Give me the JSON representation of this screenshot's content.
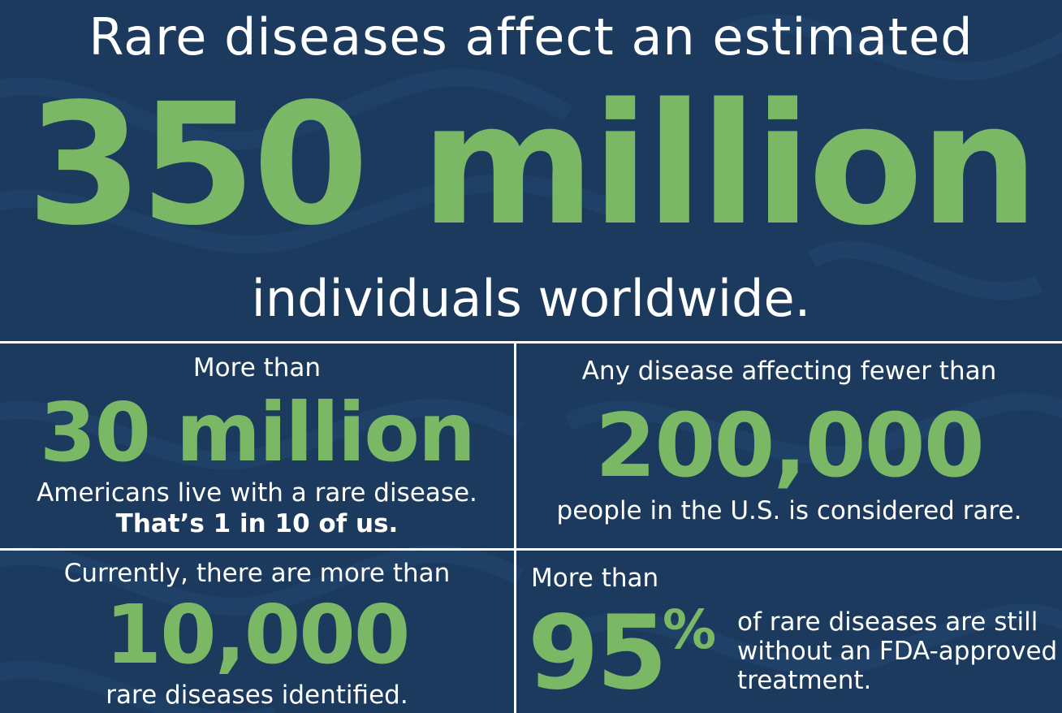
{
  "colors": {
    "background": "#1b3a5e",
    "accent": "#7ab865",
    "text": "#ffffff"
  },
  "hero": {
    "top": "Rare diseases affect an estimated",
    "number": "350 million",
    "bottom": "individuals worldwide."
  },
  "stats": [
    {
      "pre": "More than",
      "number": "30 million",
      "post": "Americans live with a rare disease.",
      "post_bold": "That’s 1 in 10 of us."
    },
    {
      "pre": "Any disease affecting fewer than",
      "number": "200,000",
      "post": "people in the U.S. is considered rare."
    },
    {
      "pre": "Currently, there are more than",
      "number": "10,000",
      "post": "rare diseases identified."
    },
    {
      "pre": "More than",
      "number": "95",
      "unit": "%",
      "post": "of rare diseases are still without an FDA-approved treatment."
    }
  ]
}
